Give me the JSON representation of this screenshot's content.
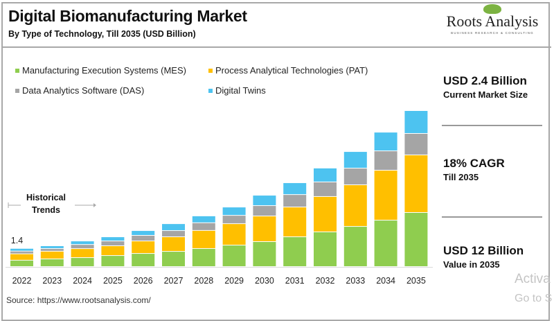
{
  "header": {
    "title": "Digital Biomanufacturing Market",
    "subtitle": "By Type of Technology, Till 2035 (USD Billion)"
  },
  "logo": {
    "name": "Roots Analysis",
    "tagline": "BUSINESS RESEARCH & CONSULTING"
  },
  "kpis": [
    {
      "value": "USD 2.4 Billion",
      "label": "Current Market Size"
    },
    {
      "value": "18% CAGR",
      "label": "Till 2035"
    },
    {
      "value": "USD 12 Billion",
      "label": "Value in 2035"
    }
  ],
  "annotation": {
    "historical_line1": "Historical",
    "historical_line2": "Trends",
    "first_value_label": "1.4"
  },
  "source": "Source: https://www.rootsanalysis.com/",
  "watermark": {
    "line1": "Activa",
    "line2": "Go to S"
  },
  "chart_data": {
    "type": "bar",
    "stacked": true,
    "title": "Digital Biomanufacturing Market",
    "subtitle": "By Type of Technology, Till 2035 (USD Billion)",
    "legend_position": "top",
    "grid": false,
    "ylim": [
      0,
      12
    ],
    "categories": [
      "2022",
      "2023",
      "2024",
      "2025",
      "2026",
      "2027",
      "2028",
      "2029",
      "2030",
      "2031",
      "2032",
      "2033",
      "2034",
      "2035"
    ],
    "series": [
      {
        "name": "Manufacturing Execution Systems (MES)",
        "color": "#8fcd4f",
        "values": [
          0.49,
          0.59,
          0.69,
          0.85,
          1.01,
          1.17,
          1.39,
          1.65,
          1.92,
          2.29,
          2.67,
          3.09,
          3.57,
          4.16
        ]
      },
      {
        "name": "Process Analytical Technologies (PAT)",
        "color": "#ffbf00",
        "values": [
          0.49,
          0.59,
          0.69,
          0.75,
          0.96,
          1.12,
          1.39,
          1.65,
          1.97,
          2.29,
          2.72,
          3.2,
          3.84,
          4.43
        ]
      },
      {
        "name": "Data Analytics Software (DAS)",
        "color": "#a5a5a5",
        "values": [
          0.21,
          0.21,
          0.32,
          0.37,
          0.43,
          0.48,
          0.59,
          0.64,
          0.8,
          0.96,
          1.12,
          1.28,
          1.49,
          1.65
        ]
      },
      {
        "name": "Digital Twins",
        "color": "#4dc3f0",
        "values": [
          0.21,
          0.21,
          0.27,
          0.32,
          0.37,
          0.53,
          0.53,
          0.64,
          0.8,
          0.91,
          1.07,
          1.28,
          1.44,
          1.76
        ]
      }
    ],
    "data_labels": [
      {
        "category": "2022",
        "text": "1.4"
      }
    ]
  }
}
